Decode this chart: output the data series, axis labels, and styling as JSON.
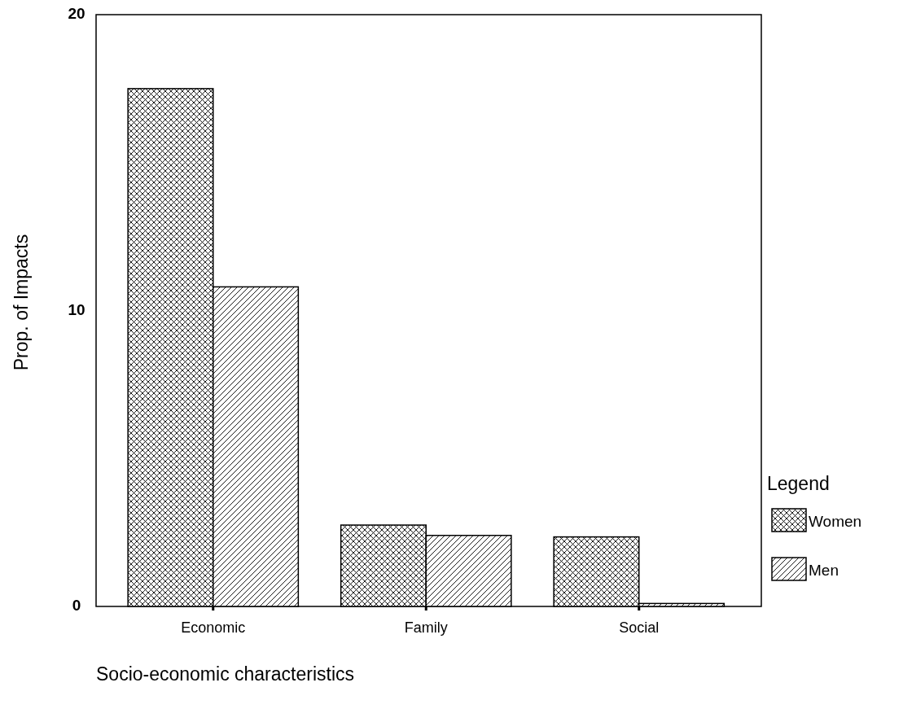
{
  "chart_data": {
    "type": "bar",
    "xlabel": "Socio-economic characteristics",
    "ylabel": "Prop. of Impacts",
    "legend_title": "Legend",
    "legend": "right",
    "categories": [
      "Economic",
      "Family",
      "Social"
    ],
    "series": [
      {
        "name": "Women",
        "color": "#000000",
        "values": [
          17.5,
          2.75,
          2.35
        ]
      },
      {
        "name": "Men",
        "color": "#000000",
        "values": [
          10.8,
          2.4,
          0.1
        ]
      }
    ],
    "ylim": [
      0,
      20
    ],
    "yticks": [
      0,
      10,
      20
    ]
  }
}
